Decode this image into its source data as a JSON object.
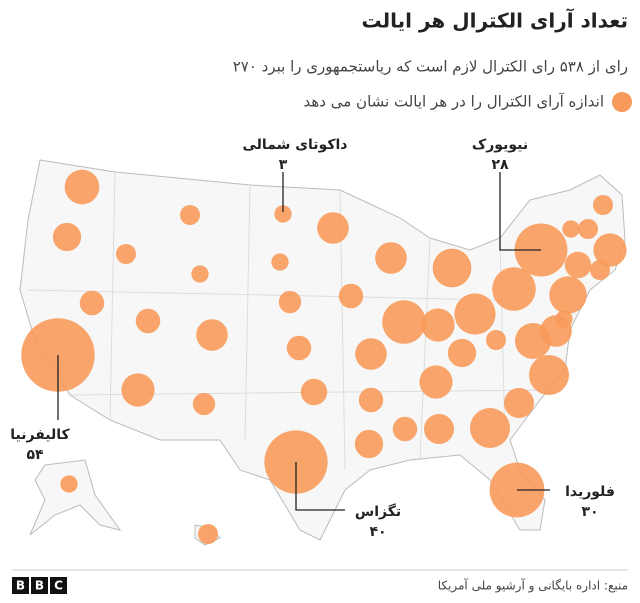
{
  "title": "تعداد آرای الکترال هر ایالت",
  "subtitle": "۲۷۰ رای از ۵۳۸ رای الکترال لازم است که ریاستجمهوری را ببرد",
  "legend": "اندازه آرای الکترال را در هر ایالت نشان می دهد",
  "color": "#f79a5a",
  "labeled": [
    {
      "name": "داکوتای شمالی",
      "value": 3,
      "value_label": "۳"
    },
    {
      "name": "نیویورک",
      "value": 28,
      "value_label": "۲۸"
    },
    {
      "name": "کالیفرنیا",
      "value": 54,
      "value_label": "۵۴"
    },
    {
      "name": "تگزاس",
      "value": 40,
      "value_label": "۴۰"
    },
    {
      "name": "فلوریدا",
      "value": 30,
      "value_label": "۳۰"
    }
  ],
  "others": [
    12,
    8,
    6,
    4,
    4,
    3,
    6,
    11,
    10,
    5,
    3,
    5,
    6,
    7,
    10,
    6,
    10,
    6,
    8,
    10,
    19,
    15,
    11,
    8,
    11,
    6,
    9,
    16,
    9,
    16,
    13,
    4,
    17,
    19,
    3,
    4,
    4,
    11,
    4,
    7,
    14,
    3,
    10,
    3,
    4
  ],
  "logo": [
    "B",
    "B",
    "C"
  ],
  "source": "منبع: اداره بایگانی و آرشیو ملی آمریکا"
}
